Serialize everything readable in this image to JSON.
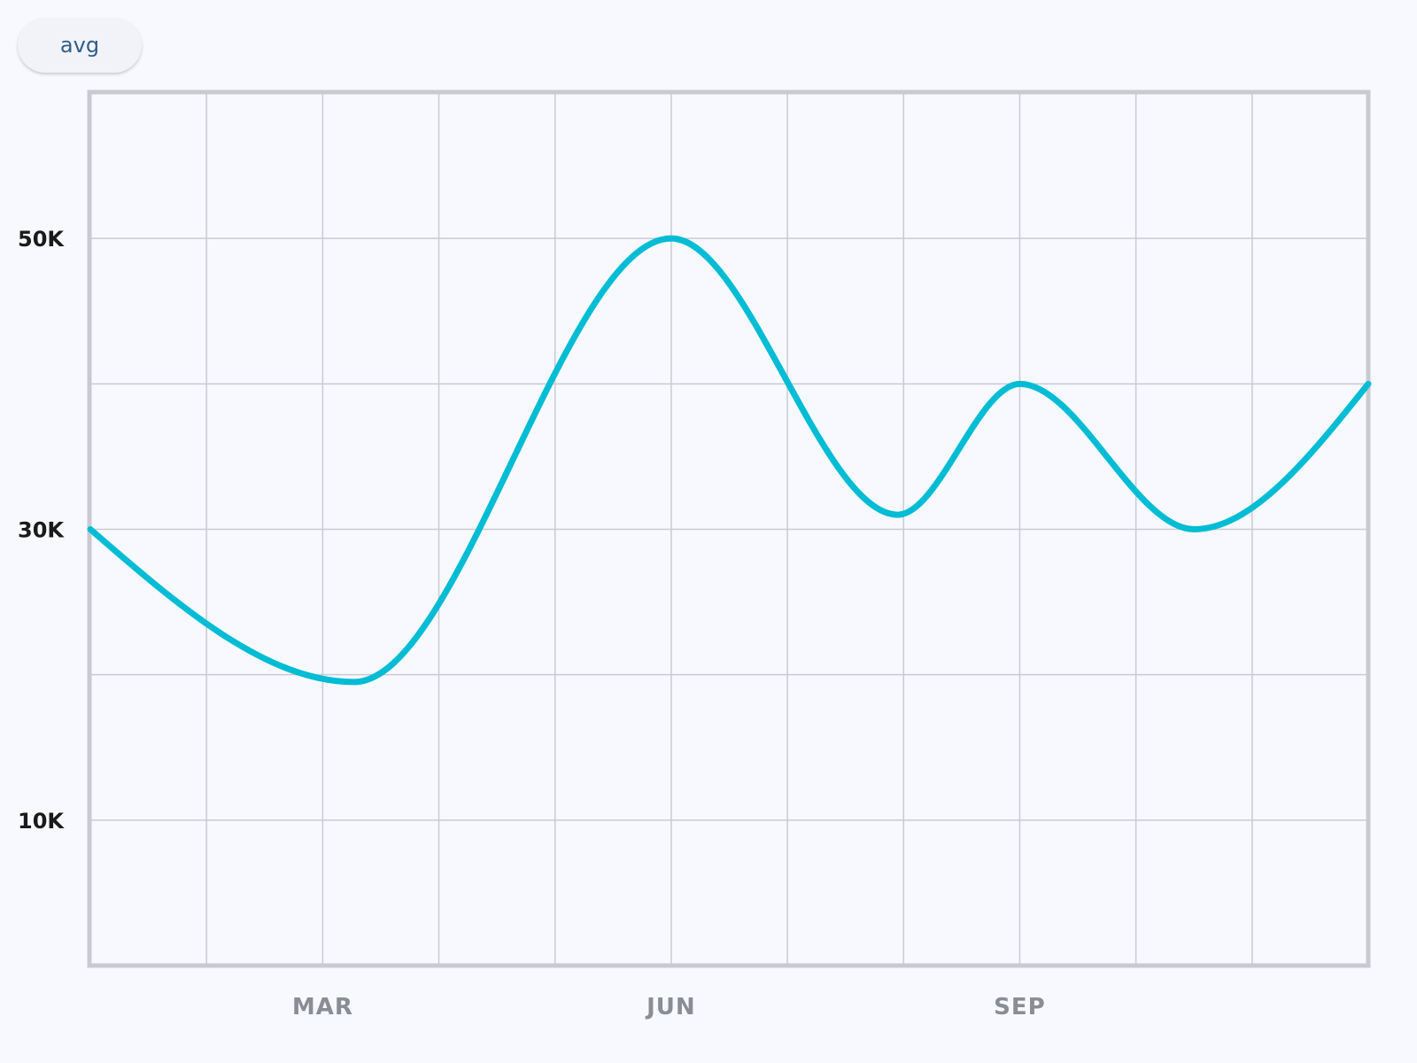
{
  "toolbar": {
    "avg_label": "avg"
  },
  "colors": {
    "line": "#00bcd4",
    "grid": "#c9cbd2",
    "border": "#c8cad0"
  },
  "chart_data": {
    "type": "line",
    "title": "",
    "xlabel": "",
    "ylabel": "",
    "xlim": [
      1,
      12
    ],
    "ylim": [
      0,
      60000
    ],
    "grid": true,
    "x_tick_labels": [
      {
        "x": 3,
        "label": "MAR"
      },
      {
        "x": 6,
        "label": "JUN"
      },
      {
        "x": 9,
        "label": "SEP"
      }
    ],
    "x_gridlines": [
      1,
      2,
      3,
      4,
      5,
      6,
      7,
      8,
      9,
      10,
      11,
      12
    ],
    "y_gridlines": [
      10000,
      20000,
      30000,
      40000,
      50000
    ],
    "y_tick_labels": [
      {
        "y": 10000,
        "label": "10K"
      },
      {
        "y": 30000,
        "label": "30K"
      },
      {
        "y": 50000,
        "label": "50K"
      }
    ],
    "series": [
      {
        "x": [
          1,
          3.27,
          6,
          7.95,
          9,
          10.5,
          12
        ],
        "y": [
          30000,
          19500,
          50000,
          31000,
          40000,
          30000,
          40000
        ]
      }
    ]
  }
}
